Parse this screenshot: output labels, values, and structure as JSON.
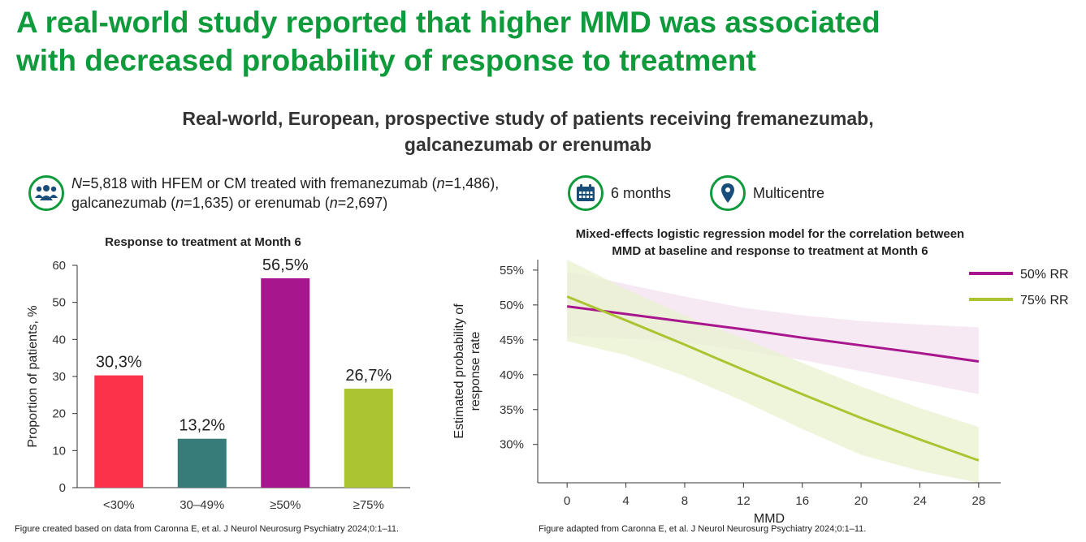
{
  "header": {
    "title_line1": "A real-world study reported that higher MMD was associated",
    "title_line2": "with decreased probability of response to treatment",
    "subtitle_line1": "Real-world, European, prospective study of patients receiving fremanezumab,",
    "subtitle_line2": "galcanezumab or erenumab"
  },
  "info": {
    "patients_line1_parts": [
      "N",
      "=5,818 with HFEM or CM treated with fremanezumab (",
      "n",
      "=1,486),"
    ],
    "patients_line2_parts": [
      "galcanezumab (",
      "n",
      "=1,635) or erenumab (",
      "n",
      "=2,697)"
    ],
    "patients_icon": "people-group-icon",
    "duration": "6 months",
    "duration_icon": "calendar-icon",
    "sites": "Multicentre",
    "sites_icon": "location-pin-icon",
    "icon_color": "#0f9b3c"
  },
  "chart_data": [
    {
      "type": "bar",
      "title": "Response to treatment at Month 6",
      "ylabel": "Proportion of patients, %",
      "xlabel": "",
      "ylim": [
        0,
        60
      ],
      "yticks": [
        "0",
        "10",
        "20",
        "30",
        "40",
        "50",
        "60"
      ],
      "grid": false,
      "categories": [
        "<30%",
        "30–49%",
        "≥50%",
        "≥75%"
      ],
      "values": [
        30.3,
        13.2,
        56.5,
        26.7
      ],
      "data_labels": [
        "30,3%",
        "13,2%",
        "56,5%",
        "26,7%"
      ],
      "colors": [
        "#fc324a",
        "#377c78",
        "#a8168d",
        "#abc432"
      ]
    },
    {
      "type": "line",
      "title_line1": "Mixed-effects logistic regression model for the correlation between",
      "title_line2": "MMD at baseline and response to treatment at Month 6",
      "xlabel": "MMD",
      "ylabel_line1": "Estimated probability of",
      "ylabel_line2": "response rate",
      "xlim": [
        -2,
        29.5
      ],
      "ylim": [
        0.245,
        0.565
      ],
      "xticks": [
        "0",
        "4",
        "8",
        "12",
        "16",
        "20",
        "24",
        "28"
      ],
      "yticks": [
        "30%",
        "35%",
        "40%",
        "45%",
        "50%",
        "55%"
      ],
      "legend_position": "top-right",
      "grid": false,
      "series": [
        {
          "name": "50% RR",
          "color": "#a8168d",
          "band_color": "#f4e1f0",
          "x": [
            0,
            4,
            8,
            12,
            16,
            20,
            24,
            28
          ],
          "y": [
            0.498,
            0.487,
            0.476,
            0.465,
            0.453,
            0.442,
            0.431,
            0.419
          ],
          "lower": [
            0.455,
            0.452,
            0.446,
            0.435,
            0.421,
            0.405,
            0.389,
            0.372
          ],
          "upper": [
            0.548,
            0.53,
            0.512,
            0.496,
            0.485,
            0.477,
            0.472,
            0.468
          ]
        },
        {
          "name": "75% RR",
          "color": "#abc432",
          "band_color": "#eaf2cf",
          "x": [
            0,
            4,
            8,
            12,
            16,
            20,
            24,
            28
          ],
          "y": [
            0.512,
            0.478,
            0.443,
            0.407,
            0.372,
            0.338,
            0.307,
            0.277
          ],
          "lower": [
            0.448,
            0.428,
            0.398,
            0.362,
            0.322,
            0.285,
            0.262,
            0.245
          ],
          "upper": [
            0.565,
            0.523,
            0.485,
            0.452,
            0.417,
            0.383,
            0.352,
            0.325
          ]
        }
      ]
    }
  ],
  "footnotes": {
    "left": "Figure created based on data from Caronna E, et al. J Neurol Neurosurg Psychiatry 2024;0:1–11.",
    "right": "Figure adapted from Caronna E, et al. J Neurol Neurosurg Psychiatry 2024;0:1–11."
  }
}
